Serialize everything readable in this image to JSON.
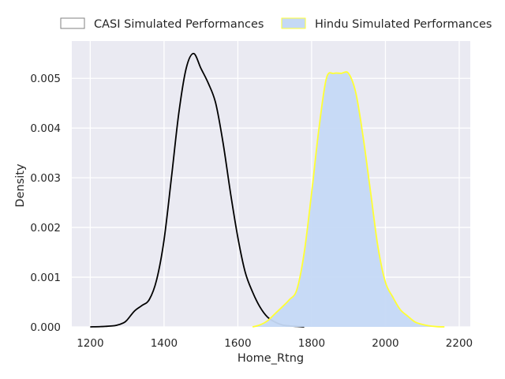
{
  "chart_data": {
    "type": "area",
    "xlabel": "Home_Rtng",
    "ylabel": "Density",
    "xlim": [
      1150,
      2230
    ],
    "ylim": [
      0,
      0.00575
    ],
    "x_ticks": [
      1200,
      1400,
      1600,
      1800,
      2000,
      2200
    ],
    "y_ticks": [
      0.0,
      0.001,
      0.002,
      0.003,
      0.004,
      0.005
    ],
    "x_tick_labels": [
      "1200",
      "1400",
      "1600",
      "1800",
      "2000",
      "2200"
    ],
    "y_tick_labels": [
      "0.000",
      "0.001",
      "0.002",
      "0.003",
      "0.004",
      "0.005"
    ],
    "grid": true,
    "legend_position": "top",
    "background_color": "#eaeaf2",
    "series": [
      {
        "name": "CASI Simulated Performances",
        "line_color": "#000000",
        "fill_color": "none",
        "legend_edge": "#808080",
        "x": [
          1200,
          1240,
          1270,
          1290,
          1300,
          1320,
          1340,
          1360,
          1380,
          1400,
          1420,
          1440,
          1460,
          1480,
          1500,
          1520,
          1540,
          1560,
          1580,
          1600,
          1620,
          1640,
          1660,
          1680,
          1700,
          1720,
          1740,
          1760,
          1780
        ],
        "y": [
          0.0,
          1e-05,
          3e-05,
          8e-05,
          0.00014,
          0.00032,
          0.00043,
          0.00055,
          0.00095,
          0.00175,
          0.003,
          0.0043,
          0.0052,
          0.0055,
          0.0052,
          0.0049,
          0.0045,
          0.0037,
          0.0027,
          0.0018,
          0.0011,
          0.0007,
          0.0004,
          0.0002,
          0.0001,
          4e-05,
          2e-05,
          1e-05,
          0.0
        ]
      },
      {
        "name": "Hindu Simulated Performances",
        "line_color": "#ffff33",
        "fill_color": "#c5d9f5",
        "legend_edge": "#ffff33",
        "x": [
          1640,
          1660,
          1680,
          1700,
          1720,
          1740,
          1760,
          1780,
          1800,
          1820,
          1840,
          1860,
          1880,
          1900,
          1920,
          1940,
          1960,
          1980,
          2000,
          2020,
          2040,
          2060,
          2080,
          2100,
          2120,
          2140,
          2160
        ],
        "y": [
          0.0,
          4e-05,
          0.00012,
          0.00026,
          0.0004,
          0.00055,
          0.00075,
          0.0015,
          0.0027,
          0.004,
          0.005,
          0.0051,
          0.0051,
          0.0051,
          0.0047,
          0.0038,
          0.0027,
          0.0016,
          0.0009,
          0.0006,
          0.00035,
          0.00022,
          0.0001,
          5e-05,
          2e-05,
          5e-06,
          0.0
        ]
      }
    ]
  }
}
